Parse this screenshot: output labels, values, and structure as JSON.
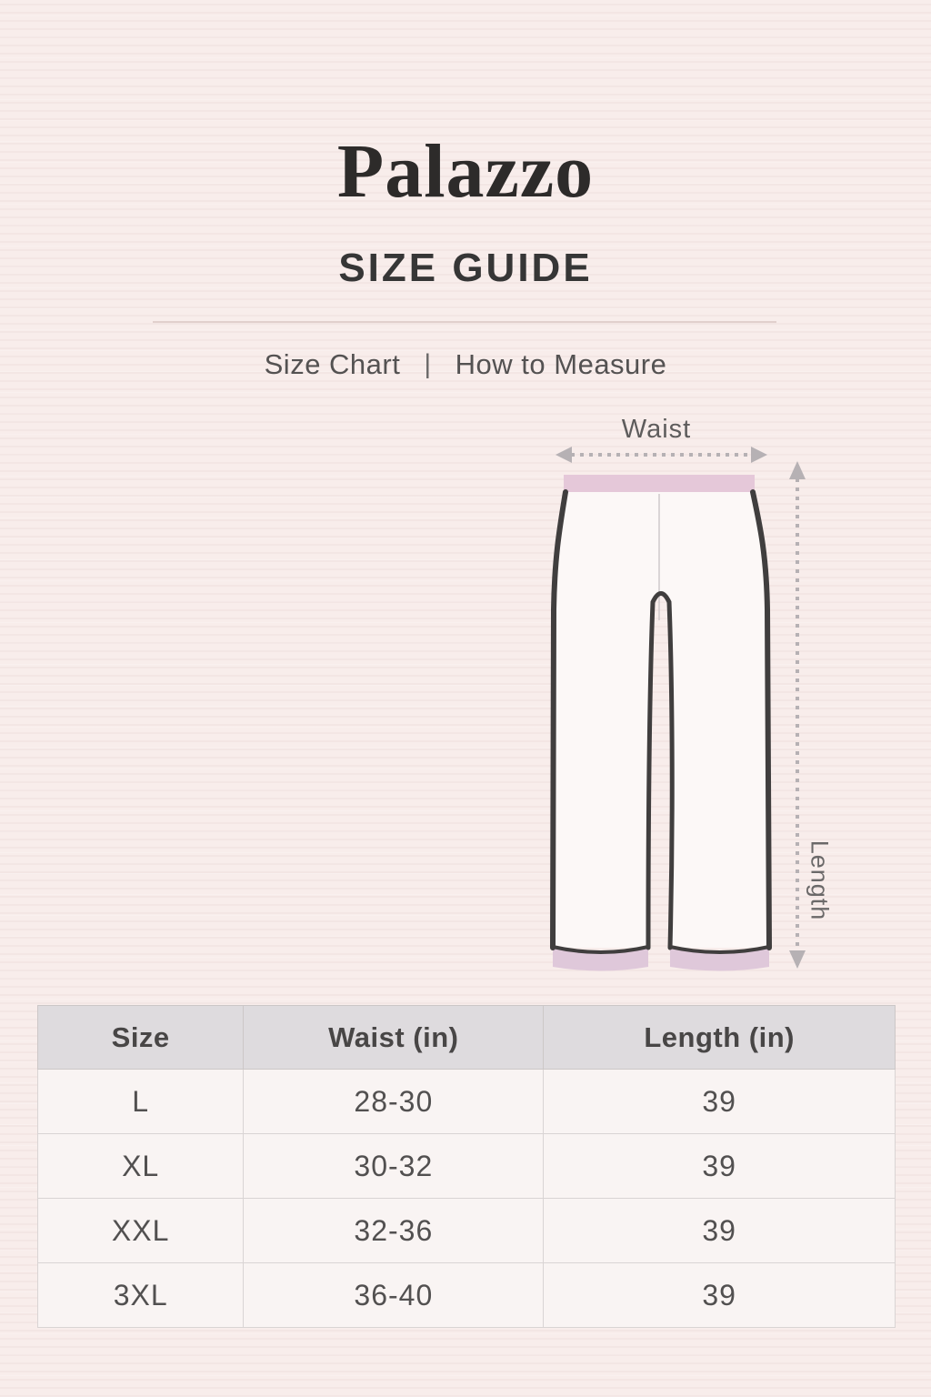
{
  "header": {
    "title": "Palazzo",
    "subtitle": "SIZE GUIDE"
  },
  "nav": {
    "size_chart_label": "Size Chart",
    "separator": "|",
    "how_to_measure_label": "How to Measure"
  },
  "diagram": {
    "waist_label": "Waist",
    "length_label": "Length"
  },
  "size_table": {
    "columns": [
      "Size",
      "Waist (in)",
      "Length (in)"
    ],
    "rows": [
      [
        "L",
        "28-30",
        "39"
      ],
      [
        "XL",
        "30-32",
        "39"
      ],
      [
        "XXL",
        "32-36",
        "39"
      ],
      [
        "3XL",
        "36-40",
        "39"
      ]
    ]
  },
  "chart_data": {
    "type": "table",
    "title": "Palazzo Size Guide",
    "columns": [
      "Size",
      "Waist (in)",
      "Length (in)"
    ],
    "rows": [
      [
        "L",
        "28-30",
        "39"
      ],
      [
        "XL",
        "30-32",
        "39"
      ],
      [
        "XXL",
        "32-36",
        "39"
      ],
      [
        "3XL",
        "36-40",
        "39"
      ]
    ]
  },
  "colors": {
    "background": "#f8edeb",
    "waistband_accent": "#e5c8d9",
    "hem_accent": "#dfc8da",
    "table_header_bg": "#dedbde",
    "outline": "#403e3e",
    "arrow": "#b6b1b4"
  }
}
